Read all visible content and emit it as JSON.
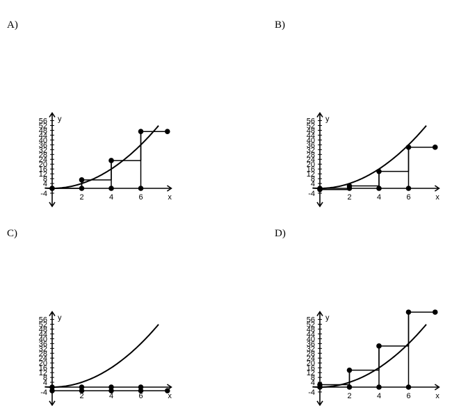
{
  "chart_data": [
    {
      "id": "A",
      "label": "A)",
      "type": "line",
      "ylabel": "y",
      "xlabel": "x",
      "xlim": [
        -0.6,
        7.5
      ],
      "ylim": [
        -8,
        60
      ],
      "xticks": [
        2,
        4,
        6
      ],
      "yticks": [
        -4,
        4,
        8,
        12,
        16,
        20,
        24,
        28,
        32,
        36,
        40,
        44,
        48,
        52,
        56
      ],
      "curve": {
        "x_range": [
          -0.5,
          7.2
        ],
        "function": "x^2"
      },
      "step_points": [
        [
          0,
          0
        ],
        [
          2,
          7
        ],
        [
          4,
          23
        ],
        [
          6,
          47
        ]
      ],
      "open_point": [
        7.8,
        47
      ]
    },
    {
      "id": "B",
      "label": "B)",
      "type": "line",
      "ylabel": "y",
      "xlabel": "x",
      "xlim": [
        -0.6,
        7.5
      ],
      "ylim": [
        -8,
        60
      ],
      "xticks": [
        2,
        4,
        6
      ],
      "yticks": [
        -4,
        4,
        8,
        12,
        16,
        20,
        24,
        28,
        32,
        36,
        40,
        44,
        48,
        52,
        56
      ],
      "curve": {
        "x_range": [
          -0.5,
          7.2
        ],
        "function": "x^2"
      },
      "step_points": [
        [
          0,
          -1
        ],
        [
          2,
          2
        ],
        [
          4,
          14
        ],
        [
          6,
          34
        ]
      ],
      "open_point": [
        7.8,
        34
      ]
    },
    {
      "id": "C",
      "label": "C)",
      "type": "line",
      "ylabel": "y",
      "xlabel": "x",
      "xlim": [
        -0.6,
        7.5
      ],
      "ylim": [
        -8,
        60
      ],
      "xticks": [
        2,
        4,
        6
      ],
      "yticks": [
        -4,
        4,
        8,
        12,
        16,
        20,
        24,
        28,
        32,
        36,
        40,
        44,
        48,
        52,
        56
      ],
      "curve": {
        "x_range": [
          -0.5,
          7.2
        ],
        "function": "x^2"
      },
      "step_points": [
        [
          0,
          -3
        ],
        [
          2,
          -3
        ],
        [
          4,
          -3
        ],
        [
          6,
          -3
        ]
      ],
      "open_point": null
    },
    {
      "id": "D",
      "label": "D)",
      "type": "line",
      "ylabel": "y",
      "xlabel": "x",
      "xlim": [
        -0.6,
        7.5
      ],
      "ylim": [
        -8,
        60
      ],
      "xticks": [
        2,
        4,
        6
      ],
      "yticks": [
        -4,
        4,
        8,
        12,
        16,
        20,
        24,
        28,
        32,
        36,
        40,
        44,
        48,
        52,
        56
      ],
      "curve": {
        "x_range": [
          -0.5,
          7.2
        ],
        "function": "x^2"
      },
      "step_points": [
        [
          0,
          2
        ],
        [
          2,
          14
        ],
        [
          4,
          34
        ],
        [
          6,
          62
        ]
      ],
      "open_point": [
        7.8,
        62
      ]
    }
  ]
}
